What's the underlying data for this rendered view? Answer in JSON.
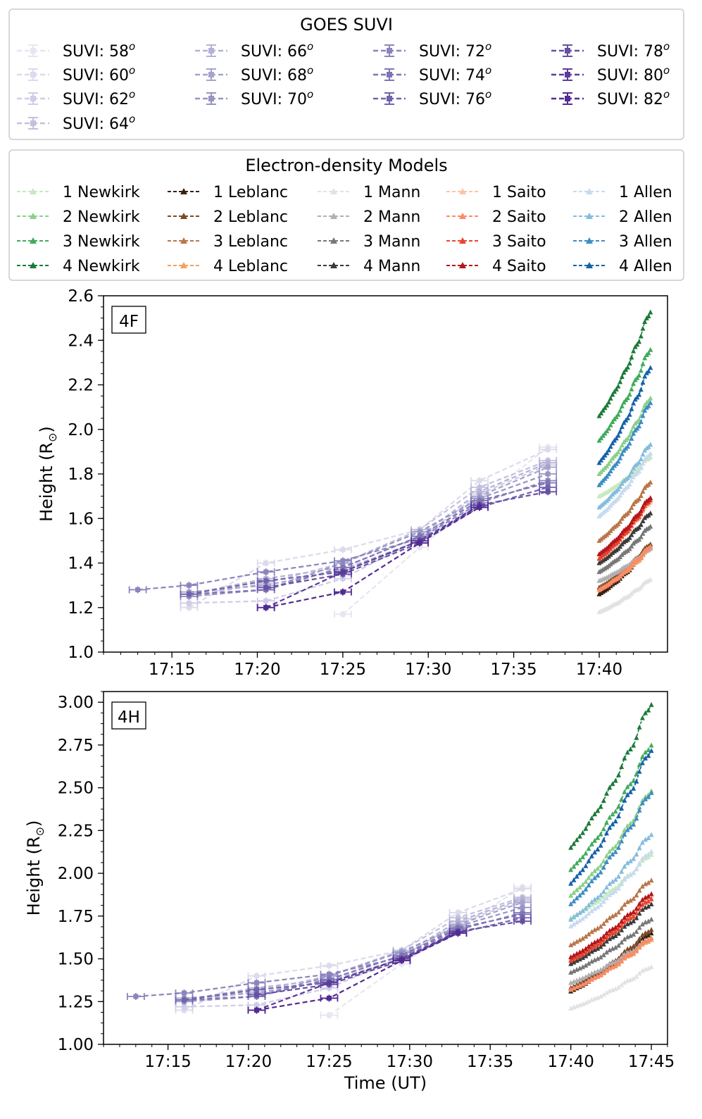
{
  "legend_suvi": {
    "title": "GOES SUVI",
    "entries": [
      {
        "label": "SUVI: 58",
        "sup": "o",
        "color": "#e7e5f1"
      },
      {
        "label": "SUVI: 60",
        "sup": "o",
        "color": "#dcdaec"
      },
      {
        "label": "SUVI: 62",
        "sup": "o",
        "color": "#cfcde6"
      },
      {
        "label": "SUVI: 64",
        "sup": "o",
        "color": "#c2c0de"
      },
      {
        "label": "SUVI: 66",
        "sup": "o",
        "color": "#b4b2d6"
      },
      {
        "label": "SUVI: 68",
        "sup": "o",
        "color": "#a6a3cd"
      },
      {
        "label": "SUVI: 70",
        "sup": "o",
        "color": "#9894c4"
      },
      {
        "label": "SUVI: 72",
        "sup": "o",
        "color": "#8b85bd"
      },
      {
        "label": "SUVI: 74",
        "sup": "o",
        "color": "#7e75b5"
      },
      {
        "label": "SUVI: 76",
        "sup": "o",
        "color": "#7263ad"
      },
      {
        "label": "SUVI: 78",
        "sup": "o",
        "color": "#6750a4"
      },
      {
        "label": "SUVI: 80",
        "sup": "o",
        "color": "#5c3c9b"
      },
      {
        "label": "SUVI: 82",
        "sup": "o",
        "color": "#522a92"
      }
    ]
  },
  "legend_models": {
    "title": "Electron-density Models",
    "entries": [
      {
        "label": "1 Newkirk",
        "color": "#c7e9c0"
      },
      {
        "label": "2 Newkirk",
        "color": "#8ccf88"
      },
      {
        "label": "3 Newkirk",
        "color": "#41ab5d"
      },
      {
        "label": "4 Newkirk",
        "color": "#1b7a38"
      },
      {
        "label": "1 Leblanc",
        "color": "#3b200c"
      },
      {
        "label": "2 Leblanc",
        "color": "#7a4a28"
      },
      {
        "label": "3 Leblanc",
        "color": "#b8764a"
      },
      {
        "label": "4 Leblanc",
        "color": "#f5a05a"
      },
      {
        "label": "1 Mann",
        "color": "#e2e2e2"
      },
      {
        "label": "2 Mann",
        "color": "#b0b0b0"
      },
      {
        "label": "3 Mann",
        "color": "#777777"
      },
      {
        "label": "4 Mann",
        "color": "#3a3a3a"
      },
      {
        "label": "1 Saito",
        "color": "#fcc5a8"
      },
      {
        "label": "2 Saito",
        "color": "#fb8a68"
      },
      {
        "label": "3 Saito",
        "color": "#e8452f"
      },
      {
        "label": "4 Saito",
        "color": "#b3161b"
      },
      {
        "label": "1 Allen",
        "color": "#c6dbef"
      },
      {
        "label": "2 Allen",
        "color": "#85bcdc"
      },
      {
        "label": "3 Allen",
        "color": "#3d8dc4"
      },
      {
        "label": "4 Allen",
        "color": "#1562a8"
      }
    ]
  },
  "chart_data": [
    {
      "type": "line",
      "panel_label": "4F",
      "ylabel": "Height (R",
      "ylabel_sub": "⊙",
      "ylabel_close": ")",
      "xlabel": "",
      "xlim": [
        17.1833,
        17.7333
      ],
      "ylim": [
        1.0,
        2.6
      ],
      "xticks": [
        {
          "v": 17.25,
          "label": "17:15"
        },
        {
          "v": 17.3333,
          "label": "17:20"
        },
        {
          "v": 17.4167,
          "label": "17:25"
        },
        {
          "v": 17.5,
          "label": "17:30"
        },
        {
          "v": 17.5833,
          "label": "17:35"
        },
        {
          "v": 17.6667,
          "label": "17:40"
        }
      ],
      "yticks": [
        {
          "v": 1.0,
          "label": "1.0"
        },
        {
          "v": 1.2,
          "label": "1.2"
        },
        {
          "v": 1.4,
          "label": "1.4"
        },
        {
          "v": 1.6,
          "label": "1.6"
        },
        {
          "v": 1.8,
          "label": "1.8"
        },
        {
          "v": 2.0,
          "label": "2.0"
        },
        {
          "v": 2.2,
          "label": "2.2"
        },
        {
          "v": 2.4,
          "label": "2.4"
        },
        {
          "v": 2.6,
          "label": "2.6"
        }
      ],
      "model_x_range": [
        17.6667,
        17.7167
      ],
      "suvi_series": [
        {
          "name": "SUVI: 58",
          "x": [
            17.4167,
            17.4917,
            17.6167
          ],
          "y": [
            1.17,
            1.47,
            1.92
          ]
        },
        {
          "name": "SUVI: 60",
          "x": [
            17.2667,
            17.3417,
            17.4167,
            17.4917,
            17.55,
            17.6167
          ],
          "y": [
            1.2,
            1.4,
            1.46,
            1.55,
            1.77,
            1.91
          ]
        },
        {
          "name": "SUVI: 62",
          "x": [
            17.2667,
            17.3417,
            17.4167,
            17.4917,
            17.55,
            17.6167
          ],
          "y": [
            1.22,
            1.23,
            1.33,
            1.51,
            1.71,
            1.84
          ]
        },
        {
          "name": "SUVI: 64",
          "x": [
            17.2667,
            17.3417,
            17.4167,
            17.4917,
            17.55,
            17.6167
          ],
          "y": [
            1.25,
            1.31,
            1.4,
            1.55,
            1.74,
            1.86
          ]
        },
        {
          "name": "SUVI: 66",
          "x": [
            17.2667,
            17.3417,
            17.4167,
            17.4917,
            17.55,
            17.6167
          ],
          "y": [
            1.26,
            1.33,
            1.38,
            1.52,
            1.72,
            1.85
          ]
        },
        {
          "name": "SUVI: 68",
          "x": [
            17.2667,
            17.3417,
            17.4167,
            17.4917,
            17.55,
            17.6167
          ],
          "y": [
            1.27,
            1.3,
            1.37,
            1.5,
            1.7,
            1.83
          ]
        },
        {
          "name": "SUVI: 70",
          "x": [
            17.2667,
            17.3417,
            17.4167,
            17.4917,
            17.55,
            17.6167
          ],
          "y": [
            1.25,
            1.28,
            1.4,
            1.54,
            1.69,
            1.8
          ]
        },
        {
          "name": "SUVI: 72",
          "x": [
            17.2167,
            17.2667,
            17.3417,
            17.4167,
            17.4917,
            17.55,
            17.6167
          ],
          "y": [
            1.28,
            1.3,
            1.36,
            1.41,
            1.51,
            1.67,
            1.77
          ]
        },
        {
          "name": "SUVI: 74",
          "x": [
            17.2667,
            17.3417,
            17.4167,
            17.4917,
            17.55,
            17.6167
          ],
          "y": [
            1.26,
            1.28,
            1.38,
            1.52,
            1.68,
            1.76
          ]
        },
        {
          "name": "SUVI: 76",
          "x": [
            17.2667,
            17.3417,
            17.4167,
            17.4917,
            17.55,
            17.6167
          ],
          "y": [
            1.26,
            1.32,
            1.36,
            1.5,
            1.65,
            1.74
          ]
        },
        {
          "name": "SUVI: 78",
          "x": [
            17.3417,
            17.4167,
            17.4917,
            17.55,
            17.6167
          ],
          "y": [
            1.29,
            1.35,
            1.49,
            1.66,
            1.72
          ]
        },
        {
          "name": "SUVI: 80",
          "x": [
            17.3417,
            17.4167,
            17.4917,
            17.55
          ],
          "y": [
            1.2,
            1.36,
            1.5,
            1.66
          ]
        },
        {
          "name": "SUVI: 82",
          "x": [
            17.3417,
            17.4167,
            17.4917,
            17.55
          ],
          "y": [
            1.2,
            1.27,
            1.49,
            1.65
          ]
        }
      ],
      "model_series": [
        {
          "name": "1 Newkirk",
          "y0": 1.7,
          "y1": 1.88
        },
        {
          "name": "2 Newkirk",
          "y0": 1.8,
          "y1": 2.15
        },
        {
          "name": "3 Newkirk",
          "y0": 1.95,
          "y1": 2.37
        },
        {
          "name": "4 Newkirk",
          "y0": 2.06,
          "y1": 2.54
        },
        {
          "name": "1 Leblanc",
          "y0": 1.26,
          "y1": 1.48
        },
        {
          "name": "2 Leblanc",
          "y0": 1.29,
          "y1": 1.49
        },
        {
          "name": "3 Leblanc",
          "y0": 1.5,
          "y1": 1.77
        },
        {
          "name": "4 Leblanc",
          "y0": 1.28,
          "y1": 1.47
        },
        {
          "name": "1 Mann",
          "y0": 1.18,
          "y1": 1.33
        },
        {
          "name": "2 Mann",
          "y0": 1.32,
          "y1": 1.47
        },
        {
          "name": "3 Mann",
          "y0": 1.36,
          "y1": 1.57
        },
        {
          "name": "4 Mann",
          "y0": 1.4,
          "y1": 1.63
        },
        {
          "name": "1 Saito",
          "y0": 1.42,
          "y1": 1.68
        },
        {
          "name": "2 Saito",
          "y0": 1.28,
          "y1": 1.48
        },
        {
          "name": "3 Saito",
          "y0": 1.42,
          "y1": 1.69
        },
        {
          "name": "4 Saito",
          "y0": 1.44,
          "y1": 1.7
        },
        {
          "name": "1 Allen",
          "y0": 1.61,
          "y1": 1.9
        },
        {
          "name": "2 Allen",
          "y0": 1.65,
          "y1": 1.94
        },
        {
          "name": "3 Allen",
          "y0": 1.75,
          "y1": 2.13
        },
        {
          "name": "4 Allen",
          "y0": 1.85,
          "y1": 2.29
        }
      ]
    },
    {
      "type": "line",
      "panel_label": "4H",
      "ylabel": "Height (R",
      "ylabel_sub": "⊙",
      "ylabel_close": ")",
      "xlabel": "Time (UT)",
      "xlim": [
        17.1833,
        17.7667
      ],
      "ylim": [
        1.0,
        3.0625
      ],
      "xticks": [
        {
          "v": 17.25,
          "label": "17:15"
        },
        {
          "v": 17.3333,
          "label": "17:20"
        },
        {
          "v": 17.4167,
          "label": "17:25"
        },
        {
          "v": 17.5,
          "label": "17:30"
        },
        {
          "v": 17.5833,
          "label": "17:35"
        },
        {
          "v": 17.6667,
          "label": "17:40"
        },
        {
          "v": 17.75,
          "label": "17:45"
        }
      ],
      "yticks": [
        {
          "v": 1.0,
          "label": "1.00"
        },
        {
          "v": 1.25,
          "label": "1.25"
        },
        {
          "v": 1.5,
          "label": "1.50"
        },
        {
          "v": 1.75,
          "label": "1.75"
        },
        {
          "v": 2.0,
          "label": "2.00"
        },
        {
          "v": 2.25,
          "label": "2.25"
        },
        {
          "v": 2.5,
          "label": "2.50"
        },
        {
          "v": 2.75,
          "label": "2.75"
        },
        {
          "v": 3.0,
          "label": "3.00"
        }
      ],
      "model_x_range": [
        17.6667,
        17.75
      ],
      "suvi_series": [
        {
          "name": "SUVI: 58",
          "x": [
            17.4167,
            17.4917,
            17.6167
          ],
          "y": [
            1.17,
            1.47,
            1.92
          ]
        },
        {
          "name": "SUVI: 60",
          "x": [
            17.2667,
            17.3417,
            17.4167,
            17.4917,
            17.55,
            17.6167
          ],
          "y": [
            1.2,
            1.4,
            1.46,
            1.55,
            1.77,
            1.91
          ]
        },
        {
          "name": "SUVI: 62",
          "x": [
            17.2667,
            17.3417,
            17.4167,
            17.4917,
            17.55,
            17.6167
          ],
          "y": [
            1.22,
            1.23,
            1.33,
            1.51,
            1.71,
            1.84
          ]
        },
        {
          "name": "SUVI: 64",
          "x": [
            17.2667,
            17.3417,
            17.4167,
            17.4917,
            17.55,
            17.6167
          ],
          "y": [
            1.25,
            1.31,
            1.4,
            1.55,
            1.74,
            1.86
          ]
        },
        {
          "name": "SUVI: 66",
          "x": [
            17.2667,
            17.3417,
            17.4167,
            17.4917,
            17.55,
            17.6167
          ],
          "y": [
            1.26,
            1.33,
            1.38,
            1.52,
            1.72,
            1.85
          ]
        },
        {
          "name": "SUVI: 68",
          "x": [
            17.2667,
            17.3417,
            17.4167,
            17.4917,
            17.55,
            17.6167
          ],
          "y": [
            1.27,
            1.3,
            1.37,
            1.5,
            1.7,
            1.83
          ]
        },
        {
          "name": "SUVI: 70",
          "x": [
            17.2667,
            17.3417,
            17.4167,
            17.4917,
            17.55,
            17.6167
          ],
          "y": [
            1.25,
            1.28,
            1.4,
            1.54,
            1.69,
            1.8
          ]
        },
        {
          "name": "SUVI: 72",
          "x": [
            17.2167,
            17.2667,
            17.3417,
            17.4167,
            17.4917,
            17.55,
            17.6167
          ],
          "y": [
            1.28,
            1.3,
            1.36,
            1.41,
            1.51,
            1.67,
            1.77
          ]
        },
        {
          "name": "SUVI: 74",
          "x": [
            17.2667,
            17.3417,
            17.4167,
            17.4917,
            17.55,
            17.6167
          ],
          "y": [
            1.26,
            1.28,
            1.38,
            1.52,
            1.68,
            1.76
          ]
        },
        {
          "name": "SUVI: 76",
          "x": [
            17.2667,
            17.3417,
            17.4167,
            17.4917,
            17.55,
            17.6167
          ],
          "y": [
            1.26,
            1.32,
            1.36,
            1.5,
            1.65,
            1.74
          ]
        },
        {
          "name": "SUVI: 78",
          "x": [
            17.3417,
            17.4167,
            17.4917,
            17.55,
            17.6167
          ],
          "y": [
            1.29,
            1.35,
            1.49,
            1.66,
            1.72
          ]
        },
        {
          "name": "SUVI: 80",
          "x": [
            17.3417,
            17.4167,
            17.4917,
            17.55
          ],
          "y": [
            1.2,
            1.36,
            1.5,
            1.66
          ]
        },
        {
          "name": "SUVI: 82",
          "x": [
            17.3417,
            17.4167,
            17.4917,
            17.55
          ],
          "y": [
            1.2,
            1.27,
            1.49,
            1.65
          ]
        }
      ],
      "model_series": [
        {
          "name": "1 Newkirk",
          "y0": 1.74,
          "y1": 2.12
        },
        {
          "name": "2 Newkirk",
          "y0": 1.87,
          "y1": 2.5
        },
        {
          "name": "3 Newkirk",
          "y0": 2.02,
          "y1": 2.77
        },
        {
          "name": "4 Newkirk",
          "y0": 2.15,
          "y1": 3.01
        },
        {
          "name": "1 Leblanc",
          "y0": 1.31,
          "y1": 1.66
        },
        {
          "name": "2 Leblanc",
          "y0": 1.33,
          "y1": 1.68
        },
        {
          "name": "3 Leblanc",
          "y0": 1.58,
          "y1": 1.97
        },
        {
          "name": "4 Leblanc",
          "y0": 1.32,
          "y1": 1.62
        },
        {
          "name": "1 Mann",
          "y0": 1.21,
          "y1": 1.46
        },
        {
          "name": "2 Mann",
          "y0": 1.36,
          "y1": 1.63
        },
        {
          "name": "3 Mann",
          "y0": 1.42,
          "y1": 1.74
        },
        {
          "name": "4 Mann",
          "y0": 1.47,
          "y1": 1.83
        },
        {
          "name": "1 Saito",
          "y0": 1.5,
          "y1": 1.88
        },
        {
          "name": "2 Saito",
          "y0": 1.32,
          "y1": 1.63
        },
        {
          "name": "3 Saito",
          "y0": 1.49,
          "y1": 1.86
        },
        {
          "name": "4 Saito",
          "y0": 1.51,
          "y1": 1.89
        },
        {
          "name": "1 Allen",
          "y0": 1.69,
          "y1": 2.14
        },
        {
          "name": "2 Allen",
          "y0": 1.73,
          "y1": 2.24
        },
        {
          "name": "3 Allen",
          "y0": 1.82,
          "y1": 2.49
        },
        {
          "name": "4 Allen",
          "y0": 1.94,
          "y1": 2.74
        }
      ]
    }
  ]
}
